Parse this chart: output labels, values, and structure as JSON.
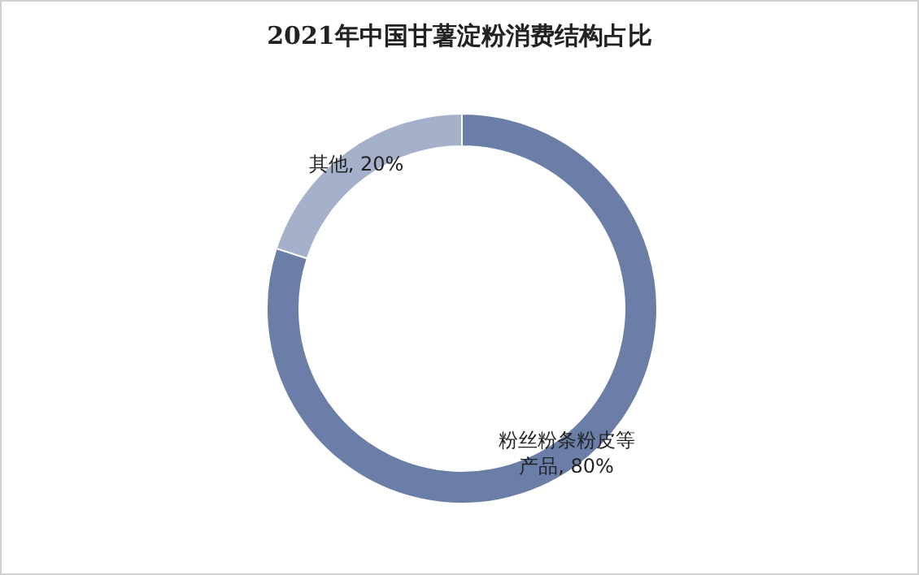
{
  "chart_data": {
    "type": "donut",
    "title": "2021年中国甘薯淀粉消费结构占比",
    "categories": [
      "粉丝粉条粉皮等产品",
      "其他"
    ],
    "values": [
      80,
      20
    ],
    "value_labels": [
      ", 80%",
      ", 20%"
    ],
    "colors": [
      "#6a7ea8",
      "#a5b1cb"
    ]
  }
}
